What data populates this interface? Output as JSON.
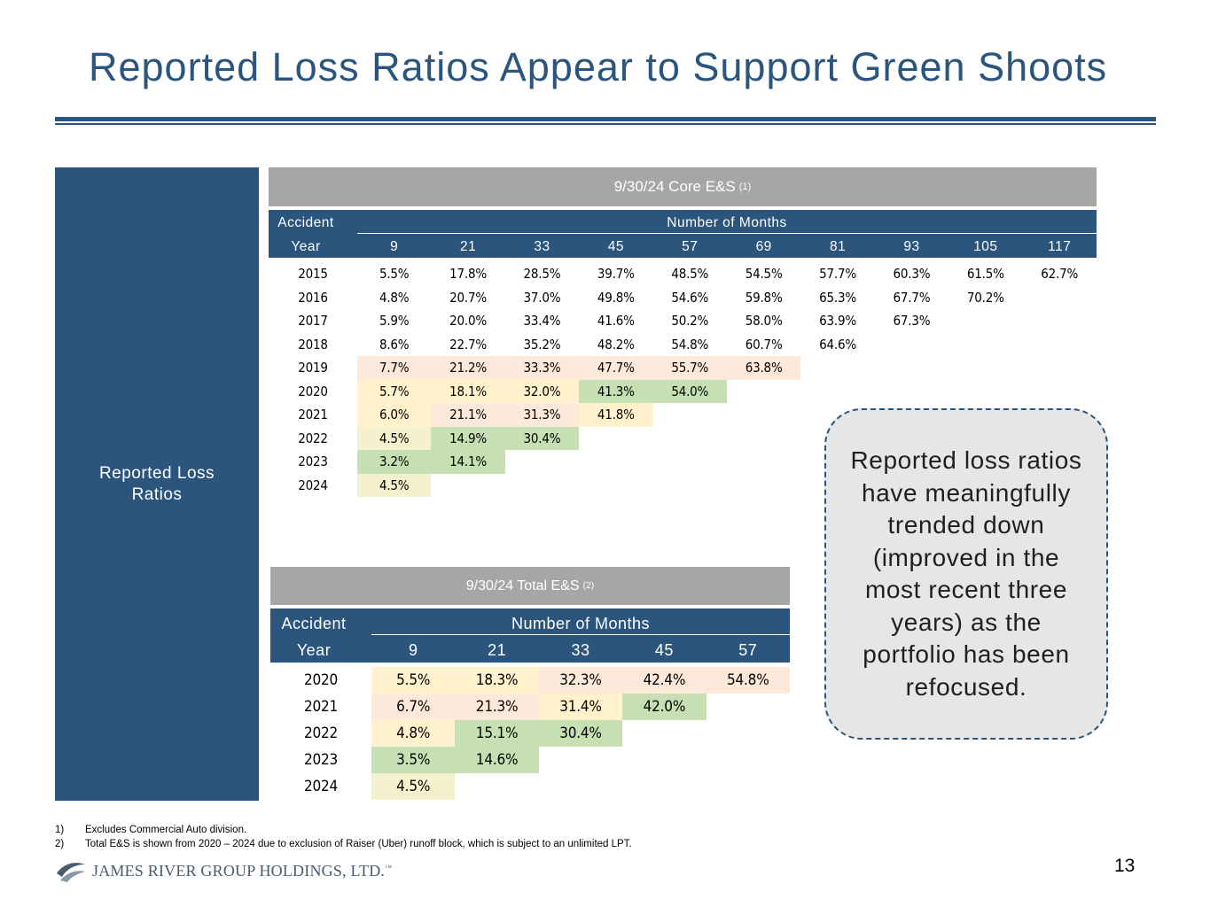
{
  "title": "Reported Loss Ratios Appear to Support Green Shoots",
  "side_label": "Reported Loss Ratios",
  "core": {
    "title": "9/30/24 Core E&S",
    "title_note": "(1)",
    "hdr_left_top": "Accident",
    "hdr_left_bottom": "Year",
    "hdr_group": "Number of Months",
    "months": [
      "9",
      "21",
      "33",
      "45",
      "57",
      "69",
      "81",
      "93",
      "105",
      "117"
    ],
    "rows": [
      {
        "year": "2015",
        "vals": [
          "5.5%",
          "17.8%",
          "28.5%",
          "39.7%",
          "48.5%",
          "54.5%",
          "57.7%",
          "60.3%",
          "61.5%",
          "62.7%"
        ],
        "colors": []
      },
      {
        "year": "2016",
        "vals": [
          "4.8%",
          "20.7%",
          "37.0%",
          "49.8%",
          "54.6%",
          "59.8%",
          "65.3%",
          "67.7%",
          "70.2%"
        ],
        "colors": []
      },
      {
        "year": "2017",
        "vals": [
          "5.9%",
          "20.0%",
          "33.4%",
          "41.6%",
          "50.2%",
          "58.0%",
          "63.9%",
          "67.3%"
        ],
        "colors": []
      },
      {
        "year": "2018",
        "vals": [
          "8.6%",
          "22.7%",
          "35.2%",
          "48.2%",
          "54.8%",
          "60.7%",
          "64.6%"
        ],
        "colors": []
      },
      {
        "year": "2019",
        "vals": [
          "7.7%",
          "21.2%",
          "33.3%",
          "47.7%",
          "55.7%",
          "63.8%"
        ],
        "colors": [
          "#fde9d9",
          "#fde9d9",
          "#fde9d9",
          "#fde9d9",
          "#fde9d9",
          "#fde9d9"
        ]
      },
      {
        "year": "2020",
        "vals": [
          "5.7%",
          "18.1%",
          "32.0%",
          "41.3%",
          "54.0%"
        ],
        "colors": [
          "#fff2cc",
          "#fff2cc",
          "#fff2cc",
          "#c6e0b4",
          "#c6e0b4"
        ]
      },
      {
        "year": "2021",
        "vals": [
          "6.0%",
          "21.1%",
          "31.3%",
          "41.8%"
        ],
        "colors": [
          "#fff2cc",
          "#fde9d9",
          "#fde9d9",
          "#fff2cc"
        ]
      },
      {
        "year": "2022",
        "vals": [
          "4.5%",
          "14.9%",
          "30.4%"
        ],
        "colors": [
          "#f6f1cd",
          "#c6e0b4",
          "#c6e0b4"
        ]
      },
      {
        "year": "2023",
        "vals": [
          "3.2%",
          "14.1%"
        ],
        "colors": [
          "#c6e0b4",
          "#c6e0b4"
        ]
      },
      {
        "year": "2024",
        "vals": [
          "4.5%"
        ],
        "colors": [
          "#f6f1cd"
        ]
      }
    ]
  },
  "total": {
    "title": "9/30/24 Total E&S",
    "title_note": "(2)",
    "hdr_left_top": "Accident",
    "hdr_left_bottom": "Year",
    "hdr_group": "Number of Months",
    "months": [
      "9",
      "21",
      "33",
      "45",
      "57"
    ],
    "rows": [
      {
        "year": "2020",
        "vals": [
          "5.5%",
          "18.3%",
          "32.3%",
          "42.4%",
          "54.8%"
        ],
        "colors": [
          "#fff2cc",
          "#fff2cc",
          "#fde9d9",
          "#fde9d9",
          "#fde9d9"
        ]
      },
      {
        "year": "2021",
        "vals": [
          "6.7%",
          "21.3%",
          "31.4%",
          "42.0%"
        ],
        "colors": [
          "#fde9d9",
          "#fde9d9",
          "#fff2cc",
          "#c6e0b4"
        ]
      },
      {
        "year": "2022",
        "vals": [
          "4.8%",
          "15.1%",
          "30.4%"
        ],
        "colors": [
          "#fff2cc",
          "#c6e0b4",
          "#c6e0b4"
        ]
      },
      {
        "year": "2023",
        "vals": [
          "3.5%",
          "14.6%"
        ],
        "colors": [
          "#c6e0b4",
          "#c6e0b4"
        ]
      },
      {
        "year": "2024",
        "vals": [
          "4.5%"
        ],
        "colors": [
          "#f6f1cd"
        ]
      }
    ]
  },
  "callout": "Reported loss ratios have meaningfully trended down (improved in the most recent three years) as the portfolio has been refocused.",
  "footnotes": [
    {
      "n": "1)",
      "text": "Excludes Commercial Auto division."
    },
    {
      "n": "2)",
      "text": "Total E&S is shown from  2020 – 2024  due to exclusion of Raiser (Uber) runoff block, which is subject to an unlimited LPT."
    }
  ],
  "logo_text": "JAMES RIVER GROUP HOLDINGS, LTD.",
  "logo_tm": "™",
  "page_number": "13",
  "colors": {
    "brand": "#2b557d",
    "title_bar": "#a6a6a6",
    "callout_bg": "#e7e6e6"
  }
}
